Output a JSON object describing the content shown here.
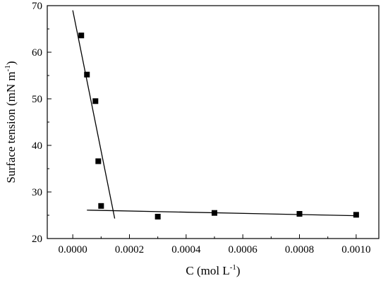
{
  "chart_data": {
    "type": "scatter",
    "title": "",
    "xlabel": "C (mol L",
    "xlabel_sup": "-1",
    "xlabel_close": ")",
    "ylabel": "Surface tension (mN  m",
    "ylabel_sup": "-1",
    "ylabel_close": ")",
    "xlim": [
      -9e-05,
      0.00108
    ],
    "ylim": [
      20,
      70
    ],
    "x_ticks": [
      0.0,
      0.0002,
      0.0004,
      0.0006,
      0.0008,
      0.001
    ],
    "x_tick_labels": [
      "0.0000",
      "0.0002",
      "0.0004",
      "0.0006",
      "0.0008",
      "0.0010"
    ],
    "y_ticks": [
      20,
      30,
      40,
      50,
      60,
      70
    ],
    "y_tick_labels": [
      "20",
      "30",
      "40",
      "50",
      "60",
      "70"
    ],
    "grid": false,
    "legend": "none",
    "marker": "filled-square",
    "color": "#000000",
    "series": [
      {
        "x": [
          3e-05,
          5e-05,
          8e-05,
          9e-05,
          0.0001,
          0.0003,
          0.0005,
          0.0008,
          0.001
        ],
        "y": [
          63.6,
          55.2,
          49.5,
          36.6,
          27.0,
          24.7,
          25.5,
          25.3,
          25.1
        ]
      }
    ],
    "fit_lines": [
      {
        "x": [
          0.0,
          0.000148
        ],
        "y": [
          69.0,
          24.3
        ]
      },
      {
        "x": [
          5e-05,
          0.001
        ],
        "y": [
          26.1,
          24.9
        ]
      }
    ]
  }
}
